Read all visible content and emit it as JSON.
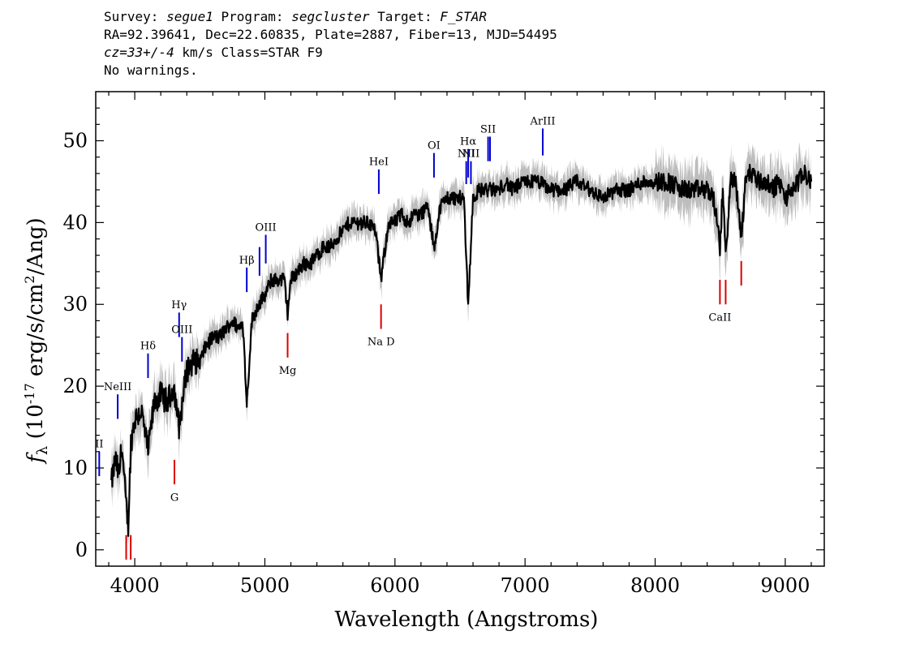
{
  "header": {
    "line1_parts": [
      {
        "t": "Survey: ",
        "i": false
      },
      {
        "t": "segue1",
        "i": true
      },
      {
        "t": " Program: ",
        "i": false
      },
      {
        "t": "segcluster",
        "i": true
      },
      {
        "t": " Target: ",
        "i": false
      },
      {
        "t": "F_STAR",
        "i": true
      }
    ],
    "line2": "RA=92.39641, Dec=22.60835, Plate=2887, Fiber=13, MJD=54495",
    "line3_parts": [
      {
        "t": "cz=33+/-4",
        "i": true
      },
      {
        "t": " km/s Class=STAR F9",
        "i": false
      }
    ],
    "line4": "No warnings."
  },
  "chart_data": {
    "type": "line",
    "xlabel": "Wavelength (Angstroms)",
    "ylabel": "f_λ (10^-17 erg/s/cm^2/Ang)",
    "xlim": [
      3700,
      9300
    ],
    "ylim": [
      -2,
      56
    ],
    "xticks": [
      4000,
      5000,
      6000,
      7000,
      8000,
      9000
    ],
    "yticks": [
      0,
      10,
      20,
      30,
      40,
      50
    ],
    "colors": {
      "spectrum": "#000000",
      "noise": "#bdbdbd",
      "emission": "#0000cc",
      "absorption": "#dd0000"
    },
    "spectrum": {
      "x": [
        3820,
        3850,
        3880,
        3900,
        3930,
        3950,
        3970,
        4000,
        4050,
        4102,
        4150,
        4200,
        4250,
        4300,
        4340,
        4400,
        4450,
        4500,
        4550,
        4600,
        4650,
        4700,
        4750,
        4800,
        4830,
        4861,
        4900,
        4950,
        5000,
        5050,
        5100,
        5150,
        5175,
        5200,
        5250,
        5300,
        5350,
        5400,
        5450,
        5500,
        5550,
        5600,
        5650,
        5700,
        5750,
        5800,
        5850,
        5893,
        5950,
        6000,
        6050,
        6100,
        6150,
        6200,
        6250,
        6300,
        6350,
        6400,
        6450,
        6500,
        6530,
        6563,
        6600,
        6650,
        6700,
        6750,
        6800,
        6850,
        6900,
        7000,
        7100,
        7200,
        7300,
        7400,
        7500,
        7600,
        7700,
        7800,
        7900,
        8000,
        8100,
        8200,
        8300,
        8400,
        8450,
        8498,
        8520,
        8542,
        8580,
        8620,
        8662,
        8700,
        8750,
        8800,
        8850,
        8900,
        8950,
        9000,
        9050,
        9100,
        9150,
        9200
      ],
      "y": [
        8,
        11,
        9,
        13,
        6,
        3,
        13,
        16,
        17,
        12,
        18,
        19,
        18,
        20,
        15,
        22,
        23,
        23,
        25,
        26,
        26,
        27,
        28,
        27,
        28,
        18,
        28,
        30,
        31,
        33,
        33,
        33,
        29,
        33,
        34,
        35,
        35,
        36,
        37,
        37,
        38,
        39,
        40,
        40,
        40,
        40,
        39,
        33,
        40,
        40,
        41,
        40,
        41,
        41,
        42,
        37,
        42,
        43,
        43,
        43,
        43,
        30,
        43,
        44,
        44,
        44,
        44,
        45,
        44,
        45,
        45,
        44,
        44,
        45,
        44,
        43,
        44,
        44,
        45,
        45,
        45,
        44,
        44,
        44,
        43,
        37,
        44,
        36,
        45,
        45,
        38,
        46,
        46,
        45,
        45,
        44,
        45,
        43,
        44,
        45,
        46,
        45
      ]
    },
    "emission_lines": [
      {
        "label": "II",
        "wave": 3727,
        "y": [
          9,
          12
        ],
        "label_y": 13
      },
      {
        "label": "NeIII",
        "wave": 3869,
        "y": [
          16,
          19
        ],
        "label_y": 20
      },
      {
        "label": "Hδ",
        "wave": 4102,
        "y": [
          21,
          24
        ],
        "label_y": 25
      },
      {
        "label": "Hγ",
        "wave": 4341,
        "y": [
          26,
          29
        ],
        "label_y": 30
      },
      {
        "label": "OIII",
        "wave": 4363,
        "y": [
          23,
          26
        ],
        "label_y": 27
      },
      {
        "label": "Hβ",
        "wave": 4861,
        "y": [
          31.5,
          34.5
        ],
        "label_y": 35.5
      },
      {
        "label": "OIII",
        "wave": 4959,
        "y": [
          33.5,
          37
        ],
        "label_y": null
      },
      {
        "label": "OIII",
        "wave": 5007,
        "y": [
          35,
          38.5
        ],
        "label_y": 39.5
      },
      {
        "label": "HeI",
        "wave": 5876,
        "y": [
          43.5,
          46.5
        ],
        "label_y": 47.5
      },
      {
        "label": "OI",
        "wave": 6300,
        "y": [
          45.5,
          48.5
        ],
        "label_y": 49.5
      },
      {
        "label": "NII",
        "wave": 6548,
        "y": [
          44.7,
          47.5
        ],
        "label_y": 48.5
      },
      {
        "label": "Hα",
        "wave": 6563,
        "y": [
          45.5,
          49
        ],
        "label_y": 50
      },
      {
        "label": "NII",
        "wave": 6584,
        "y": [
          44.7,
          47.5
        ],
        "label_y": 48.5
      },
      {
        "label": "SII",
        "wave": 6716,
        "y": [
          47.5,
          50.5
        ],
        "label_y": 51.5
      },
      {
        "label": "SII",
        "wave": 6731,
        "y": [
          47.5,
          50.5
        ],
        "label_y": null
      },
      {
        "label": "ArIII",
        "wave": 7136,
        "y": [
          48.2,
          51.5
        ],
        "label_y": 52.5
      }
    ],
    "absorption_lines": [
      {
        "label": "",
        "wave": 3934,
        "y": [
          -1.2,
          1.8
        ],
        "label_y": null
      },
      {
        "label": "",
        "wave": 3969,
        "y": [
          -1.2,
          1.8
        ],
        "label_y": null
      },
      {
        "label": "G",
        "wave": 4305,
        "y": [
          8,
          11
        ],
        "label_y": 6.5
      },
      {
        "label": "Mg",
        "wave": 5175,
        "y": [
          23.5,
          26.5
        ],
        "label_y": 22
      },
      {
        "label": "Na  D",
        "wave": 5893,
        "y": [
          27,
          30
        ],
        "label_y": 25.5
      },
      {
        "label": "CaII",
        "wave": 8498,
        "y": [
          30,
          33
        ],
        "label_y": 28.5
      },
      {
        "label": "",
        "wave": 8542,
        "y": [
          30,
          33
        ],
        "label_y": null
      },
      {
        "label": "",
        "wave": 8662,
        "y": [
          32.3,
          35.3
        ],
        "label_y": null
      }
    ]
  }
}
